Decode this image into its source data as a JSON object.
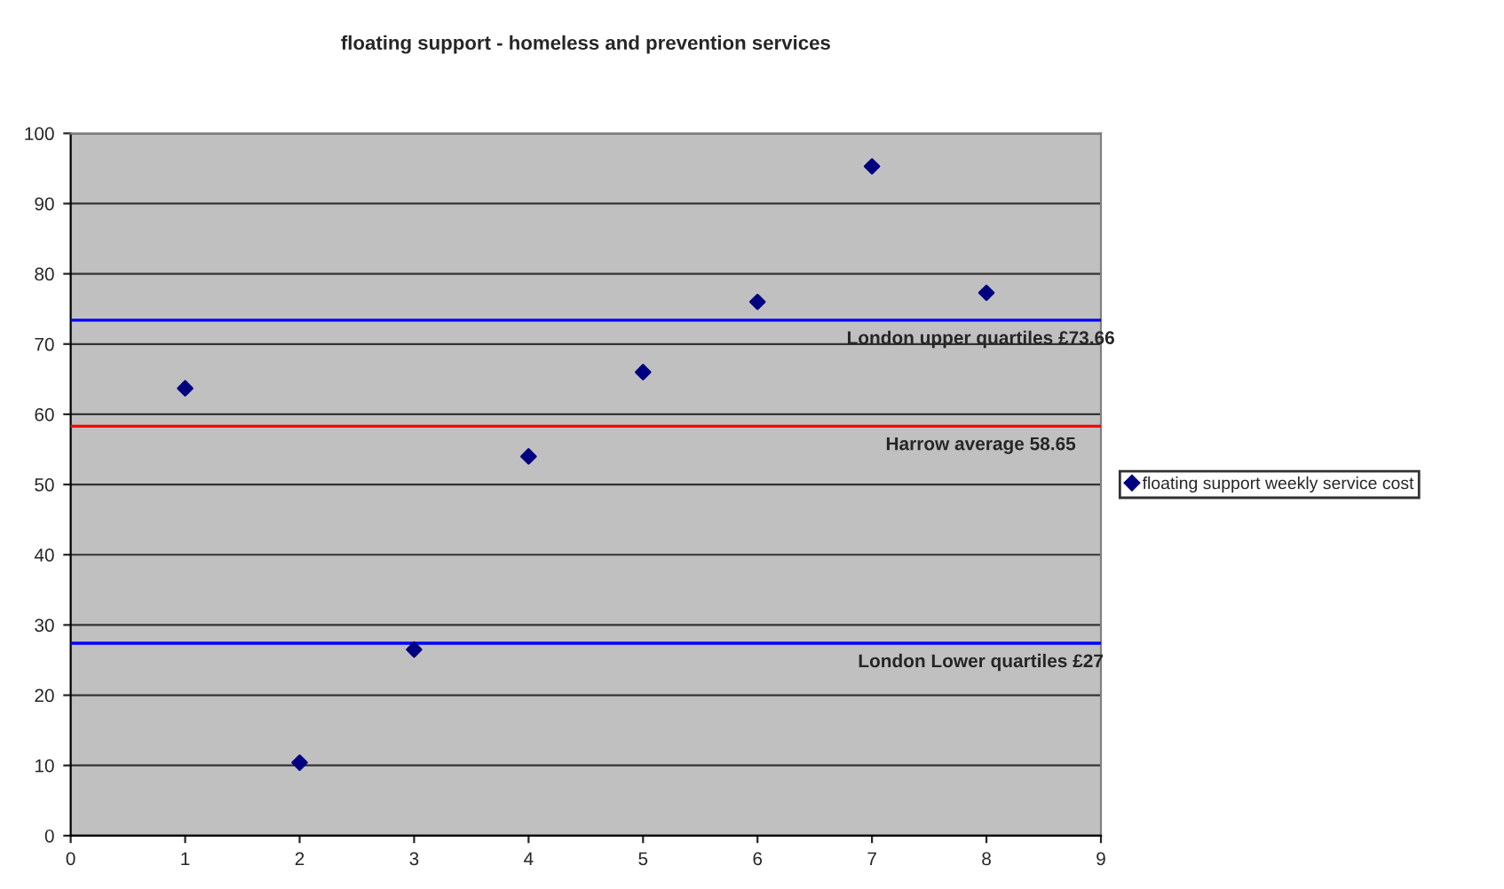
{
  "chart_data": {
    "type": "scatter",
    "title": "floating support - homeless and prevention services",
    "x": [
      1,
      2,
      3,
      4,
      5,
      6,
      7,
      8
    ],
    "series": [
      {
        "name": "floating support weekly service cost",
        "color": "#000080",
        "values": [
          63.7,
          10.4,
          26.5,
          54,
          66,
          76,
          95.3,
          77.3
        ]
      }
    ],
    "xlim": [
      0,
      9
    ],
    "xticks": [
      0,
      1,
      2,
      3,
      4,
      5,
      6,
      7,
      8,
      9
    ],
    "ylim": [
      0,
      100
    ],
    "yticks": [
      0,
      10,
      20,
      30,
      40,
      50,
      60,
      70,
      80,
      90,
      100
    ],
    "ref_lines": [
      {
        "axis": "y",
        "value": 73.4,
        "label": "London upper quartiles £73.66",
        "color": "#0000ff"
      },
      {
        "axis": "y",
        "value": 58.3,
        "label": "Harrow average 58.65",
        "color": "#ff0000"
      },
      {
        "axis": "y",
        "value": 27.4,
        "label": "London Lower quartiles £27",
        "color": "#0000ff"
      }
    ],
    "grid": "y",
    "legend": "right",
    "marker": "diamond"
  }
}
